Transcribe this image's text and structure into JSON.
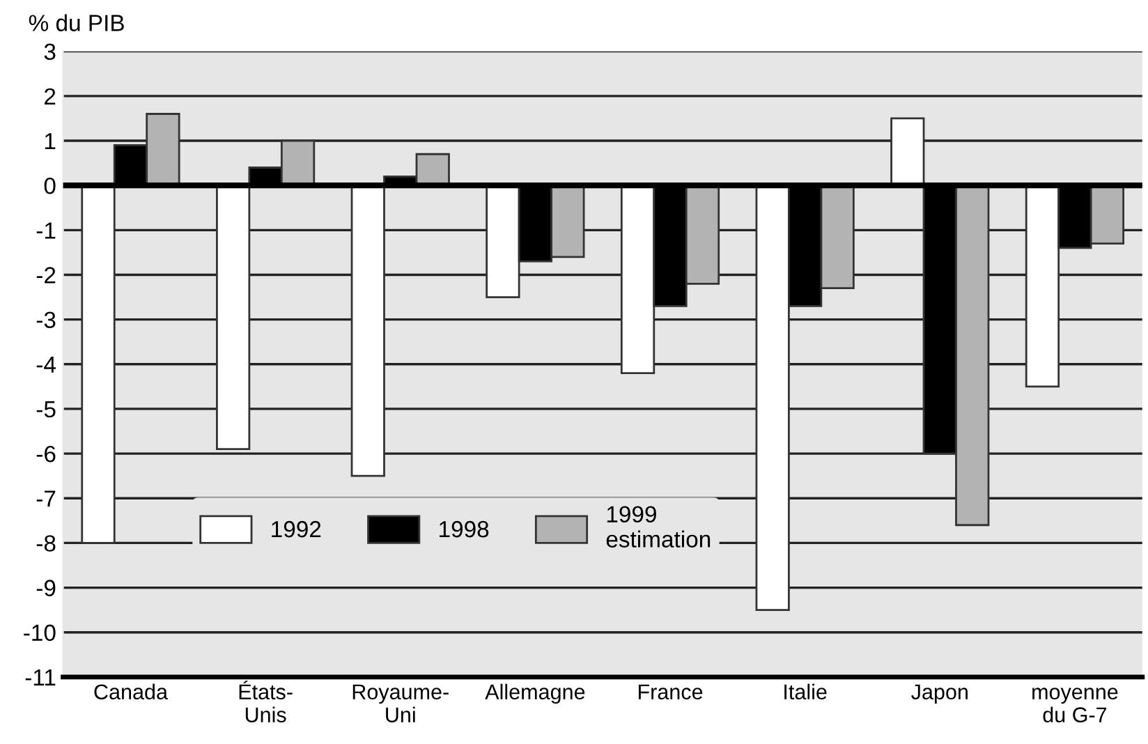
{
  "chart_data": {
    "type": "bar",
    "ylabel": "% du PIB",
    "categories": [
      "Canada",
      "États-\nUnis",
      "Royaume-\nUni",
      "Allemagne",
      "France",
      "Italie",
      "Japon",
      "moyenne\ndu G-7"
    ],
    "series": [
      {
        "name": "1992",
        "color": "#ffffff",
        "values": [
          -8.0,
          -5.9,
          -6.5,
          -2.5,
          -4.2,
          -9.5,
          1.5,
          -4.5
        ]
      },
      {
        "name": "1998",
        "color": "#000000",
        "values": [
          0.9,
          0.4,
          0.2,
          -1.7,
          -2.7,
          -2.7,
          -6.0,
          -1.4
        ]
      },
      {
        "name": "1999\nestimation",
        "color": "#b3b3b3",
        "values": [
          1.6,
          1.0,
          0.7,
          -1.6,
          -2.2,
          -2.3,
          -7.6,
          -1.3
        ]
      }
    ],
    "ylim": [
      -11,
      3
    ],
    "yticks": [
      -11,
      -10,
      -9,
      -8,
      -7,
      -6,
      -5,
      -4,
      -3,
      -2,
      -1,
      0,
      1,
      2,
      3
    ],
    "ref_lines": [
      {
        "axis": "y",
        "value": 0,
        "color": "#000000"
      }
    ],
    "grid": "y",
    "legend": "bottom left"
  }
}
